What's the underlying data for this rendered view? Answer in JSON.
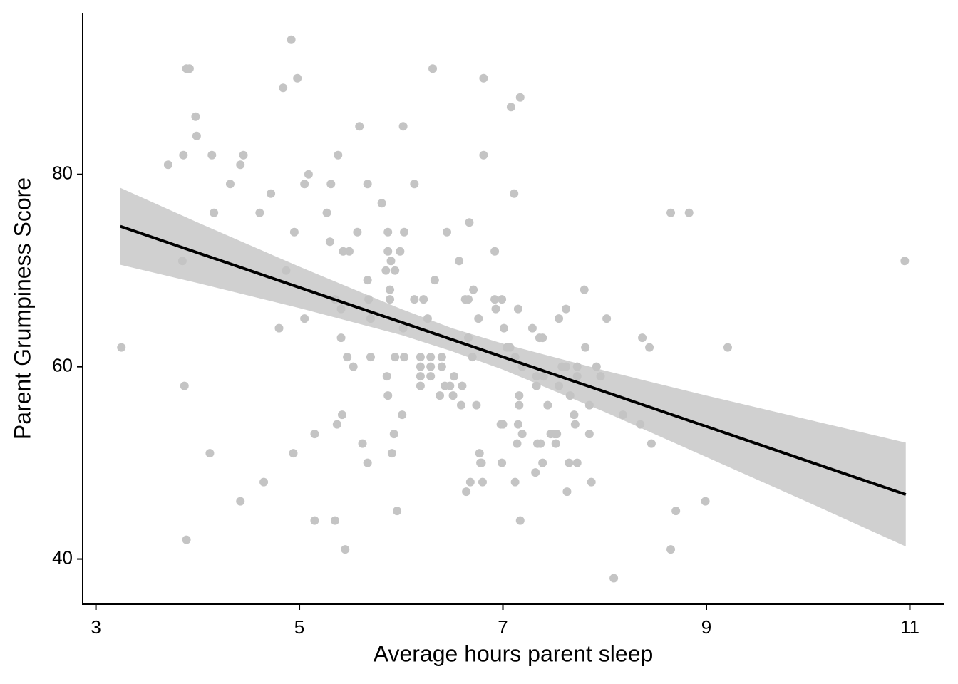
{
  "chart_data": {
    "type": "scatter",
    "x_label": "Average hours parent sleep",
    "y_label": "Parent Grumpiness Score",
    "xlim": [
      2.87,
      11.34
    ],
    "ylim": [
      35.3,
      96.8
    ],
    "xticks": [
      3,
      5,
      7,
      9,
      11
    ],
    "yticks": [
      40,
      60,
      80
    ],
    "color": "#c4c4c4",
    "x": [
      3.25,
      3.71,
      3.89,
      3.92,
      3.98,
      3.99,
      3.86,
      3.85,
      3.87,
      3.89,
      4.14,
      4.16,
      4.12,
      4.32,
      4.42,
      4.45,
      4.42,
      4.65,
      4.61,
      4.72,
      4.84,
      4.92,
      4.98,
      4.87,
      4.8,
      4.95,
      4.94,
      5.05,
      5.09,
      5.05,
      5.15,
      5.15,
      5.27,
      5.3,
      5.31,
      5.35,
      5.38,
      5.41,
      5.41,
      5.37,
      5.42,
      5.35,
      5.43,
      5.49,
      5.47,
      5.53,
      5.45,
      5.59,
      5.57,
      5.62,
      5.67,
      5.67,
      5.68,
      5.7,
      5.7,
      5.67,
      5.81,
      5.85,
      5.87,
      5.87,
      5.9,
      5.89,
      5.89,
      5.86,
      5.87,
      5.94,
      5.94,
      5.93,
      5.91,
      5.96,
      5.99,
      6.02,
      6.03,
      6.02,
      6.03,
      6.01,
      6.13,
      6.13,
      6.19,
      6.19,
      6.19,
      6.19,
      6.22,
      6.26,
      6.29,
      6.29,
      6.29,
      6.31,
      6.33,
      6.4,
      6.4,
      6.38,
      6.45,
      6.43,
      6.48,
      6.52,
      6.51,
      6.57,
      6.6,
      6.59,
      6.63,
      6.66,
      6.66,
      6.67,
      6.64,
      6.7,
      6.71,
      6.68,
      6.74,
      6.76,
      6.77,
      6.78,
      6.79,
      6.81,
      6.81,
      6.8,
      6.92,
      6.92,
      6.93,
      6.99,
      6.98,
      7.0,
      6.99,
      7.01,
      7.04,
      7.08,
      7.07,
      7.11,
      7.12,
      7.17,
      7.15,
      7.16,
      7.16,
      7.15,
      7.14,
      7.19,
      7.19,
      7.12,
      7.17,
      7.29,
      7.33,
      7.33,
      7.34,
      7.32,
      7.36,
      7.39,
      7.4,
      7.37,
      7.39,
      7.44,
      7.47,
      7.51,
      7.53,
      7.52,
      7.55,
      7.58,
      7.62,
      7.62,
      7.55,
      7.63,
      7.66,
      7.65,
      7.7,
      7.73,
      7.73,
      7.71,
      7.73,
      7.8,
      7.81,
      7.85,
      7.85,
      7.87,
      7.92,
      7.96,
      8.02,
      8.09,
      8.18,
      8.35,
      8.37,
      8.44,
      8.46,
      8.65,
      8.65,
      8.7,
      8.83,
      8.99,
      9.21,
      10.95
    ],
    "y": [
      62,
      81,
      91,
      91,
      86,
      84,
      82,
      71,
      58,
      42,
      82,
      76,
      51,
      79,
      81,
      82,
      46,
      48,
      76,
      78,
      89,
      94,
      90,
      70,
      64,
      74,
      51,
      79,
      80,
      65,
      53,
      44,
      76,
      73,
      79,
      67,
      82,
      66,
      63,
      54,
      55,
      44,
      72,
      72,
      61,
      60,
      41,
      85,
      74,
      52,
      79,
      69,
      67,
      65,
      61,
      50,
      77,
      70,
      74,
      72,
      71,
      68,
      67,
      59,
      57,
      70,
      61,
      53,
      51,
      45,
      72,
      85,
      74,
      64,
      61,
      55,
      79,
      67,
      61,
      60,
      59,
      58,
      67,
      65,
      61,
      60,
      59,
      91,
      69,
      61,
      60,
      57,
      74,
      58,
      58,
      59,
      57,
      71,
      58,
      56,
      67,
      67,
      63,
      75,
      47,
      61,
      68,
      48,
      56,
      65,
      51,
      50,
      50,
      82,
      90,
      48,
      72,
      67,
      66,
      67,
      54,
      54,
      50,
      64,
      62,
      87,
      62,
      78,
      61,
      88,
      66,
      57,
      56,
      54,
      52,
      60,
      53,
      48,
      44,
      64,
      59,
      58,
      52,
      49,
      63,
      63,
      59,
      52,
      50,
      56,
      53,
      53,
      53,
      52,
      65,
      60,
      60,
      66,
      58,
      47,
      57,
      50,
      55,
      60,
      59,
      54,
      50,
      68,
      62,
      56,
      53,
      48,
      60,
      59,
      65,
      38,
      55,
      54,
      63,
      62,
      52,
      76,
      41,
      45,
      76,
      46,
      62,
      71
    ],
    "fit": {
      "color": "#000000",
      "x": [
        3.24,
        10.96
      ],
      "y": [
        74.6,
        46.7
      ]
    },
    "band": {
      "color": "#d0d0d0",
      "x": [
        3.24,
        4,
        5,
        6,
        6.5,
        7,
        8,
        9,
        10,
        10.96
      ],
      "lower": [
        70.6,
        68.7,
        66.1,
        63.3,
        61.6,
        59.7,
        55.3,
        50.6,
        45.9,
        41.3
      ],
      "upper": [
        78.6,
        75.0,
        70.4,
        66.0,
        64.0,
        62.4,
        59.6,
        57.0,
        54.5,
        52.1
      ]
    }
  }
}
